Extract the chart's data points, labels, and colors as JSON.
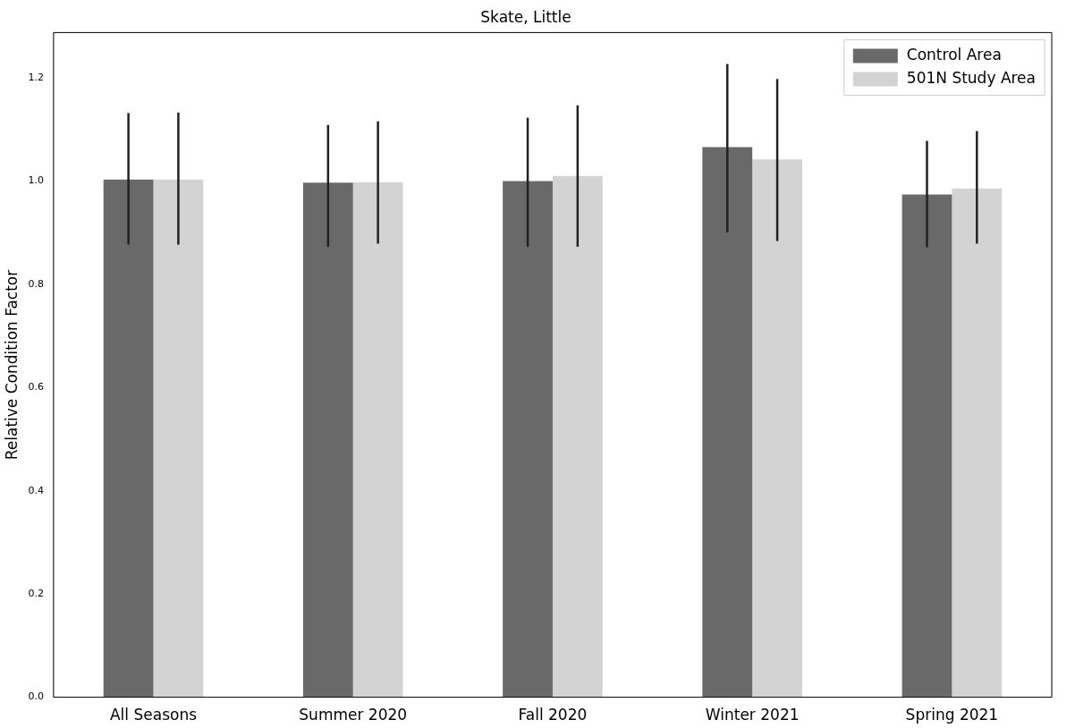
{
  "chart_data": {
    "type": "bar",
    "title": "Skate, Little",
    "ylabel": "Relative Condition Factor",
    "categories": [
      "All Seasons",
      "Summer 2020",
      "Fall 2020",
      "Winter 2021",
      "Spring 2021"
    ],
    "series": [
      {
        "name": "Control Area",
        "color": "#696969",
        "values": [
          1.003,
          0.997,
          1.0,
          1.066,
          0.974
        ],
        "errors": [
          [
            0.877,
            1.132
          ],
          [
            0.873,
            1.109
          ],
          [
            0.873,
            1.123
          ],
          [
            0.901,
            1.227
          ],
          [
            0.872,
            1.078
          ]
        ]
      },
      {
        "name": "501N Study Area",
        "color": "#d3d3d3",
        "values": [
          1.003,
          0.998,
          1.01,
          1.042,
          0.986
        ],
        "errors": [
          [
            0.877,
            1.133
          ],
          [
            0.879,
            1.116
          ],
          [
            0.873,
            1.147
          ],
          [
            0.884,
            1.198
          ],
          [
            0.879,
            1.097
          ]
        ]
      }
    ],
    "ylim": [
      0,
      1.288
    ],
    "yticks": [
      {
        "value": 0,
        "label": "0.0"
      },
      {
        "value": 0.2,
        "label": "0.2"
      },
      {
        "value": 0.4,
        "label": "0.4"
      },
      {
        "value": 0.6,
        "label": "0.6"
      },
      {
        "value": 0.8,
        "label": "0.8"
      },
      {
        "value": 1.0,
        "label": "1.0"
      },
      {
        "value": 1.2,
        "label": "1.2"
      }
    ],
    "grid": false,
    "legend": "top right"
  }
}
